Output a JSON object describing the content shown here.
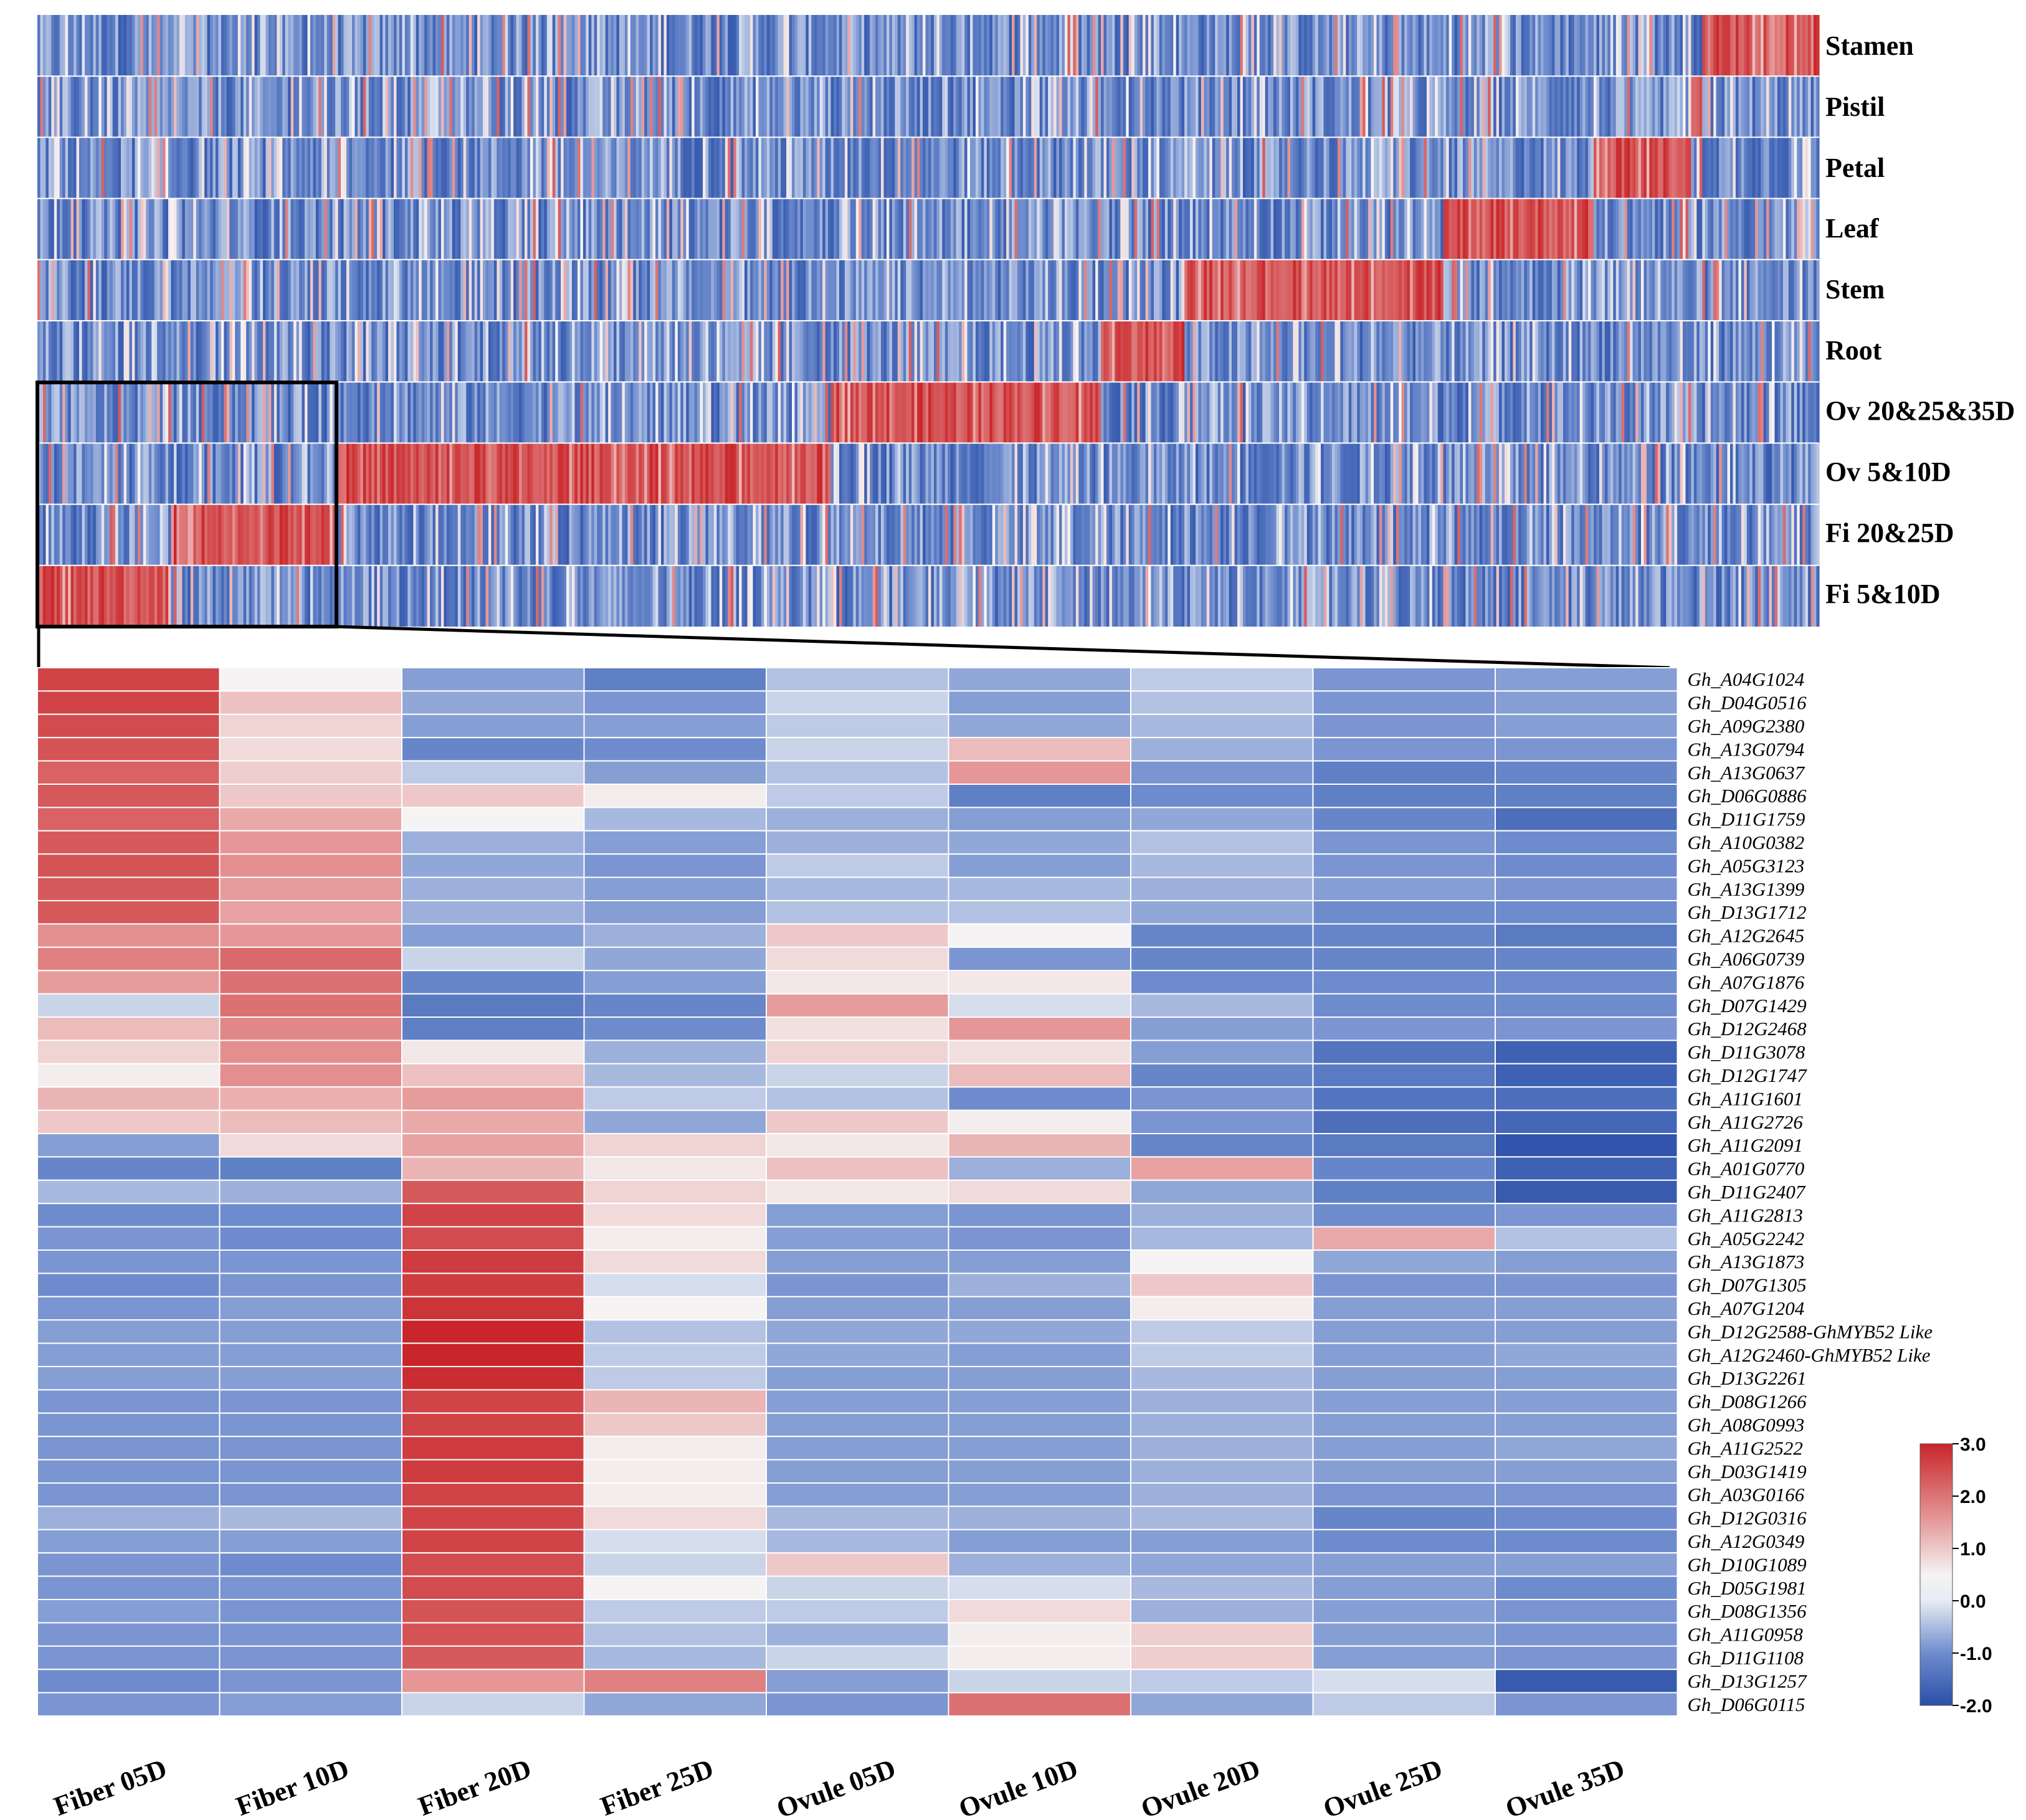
{
  "palette": {
    "low": "#2a4fa8",
    "mid": "#f5f3f3",
    "high": "#c8262a"
  },
  "chart_data": [
    {
      "type": "heatmap",
      "title": "",
      "rows": [
        "Stamen",
        "Pistil",
        "Petal",
        "Leaf",
        "Stem",
        "Root",
        "Ov 20&25&35D",
        "Ov 5&10D",
        "Fi 20&25D",
        "Fi 5&10D"
      ],
      "n_genes": 640,
      "high_blocks": [
        {
          "row": "Stamen",
          "gene_range": [
            598,
            640
          ]
        },
        {
          "row": "Pistil",
          "gene_range": [
            594,
            598
          ]
        },
        {
          "row": "Petal",
          "gene_range": [
            559,
            594
          ]
        },
        {
          "row": "Leaf",
          "gene_range": [
            505,
            559
          ]
        },
        {
          "row": "Stem",
          "gene_range": [
            412,
            505
          ]
        },
        {
          "row": "Root",
          "gene_range": [
            382,
            412
          ]
        },
        {
          "row": "Ov 20&25&35D",
          "gene_range": [
            285,
            382
          ]
        },
        {
          "row": "Ov 5&10D",
          "gene_range": [
            107,
            285
          ]
        },
        {
          "row": "Fi 20&25D",
          "gene_range": [
            48,
            107
          ]
        },
        {
          "row": "Fi 5&10D",
          "gene_range": [
            0,
            48
          ]
        }
      ],
      "zoom_gene_range": [
        0,
        107
      ],
      "zoom_row_range": [
        "Ov 20&25&35D",
        "Fi 5&10D"
      ]
    },
    {
      "type": "heatmap",
      "title": "",
      "columns": [
        "Fiber 05D",
        "Fiber 10D",
        "Fiber 20D",
        "Fiber 25D",
        "Ovule 05D",
        "Ovule 10D",
        "Ovule 20D",
        "Ovule 25D",
        "Ovule 35D"
      ],
      "genes": [
        {
          "id": "Gh_A04G1024",
          "values": [
            2.6,
            0.0,
            -0.8,
            -1.2,
            -0.4,
            -0.7,
            -0.3,
            -0.9,
            -0.8
          ]
        },
        {
          "id": "Gh_D04G0516",
          "values": [
            2.6,
            0.8,
            -0.7,
            -0.9,
            -0.2,
            -0.8,
            -0.4,
            -0.9,
            -0.8
          ]
        },
        {
          "id": "Gh_A09G2380",
          "values": [
            2.5,
            0.5,
            -0.8,
            -0.8,
            -0.3,
            -0.7,
            -0.5,
            -0.9,
            -0.8
          ]
        },
        {
          "id": "Gh_A13G0794",
          "values": [
            2.4,
            0.4,
            -1.1,
            -1.0,
            -0.2,
            0.9,
            -0.6,
            -0.9,
            -0.9
          ]
        },
        {
          "id": "Gh_A13G0637",
          "values": [
            2.2,
            0.6,
            -0.3,
            -0.8,
            -0.4,
            1.5,
            -0.9,
            -1.2,
            -1.1
          ]
        },
        {
          "id": "Gh_D06G0886",
          "values": [
            2.3,
            0.7,
            0.7,
            0.1,
            -0.3,
            -1.2,
            -1.0,
            -1.2,
            -1.2
          ]
        },
        {
          "id": "Gh_D11G1759",
          "values": [
            2.2,
            1.2,
            0.0,
            -0.5,
            -0.6,
            -0.8,
            -0.7,
            -1.1,
            -1.5
          ]
        },
        {
          "id": "Gh_A10G0382",
          "values": [
            2.3,
            1.5,
            -0.6,
            -0.8,
            -0.6,
            -0.7,
            -0.4,
            -0.9,
            -1.0
          ]
        },
        {
          "id": "Gh_A05G3123",
          "values": [
            2.4,
            1.6,
            -0.7,
            -0.9,
            -0.3,
            -0.8,
            -0.5,
            -0.9,
            -1.0
          ]
        },
        {
          "id": "Gh_A13G1399",
          "values": [
            2.3,
            1.4,
            -0.6,
            -0.8,
            -0.5,
            -0.5,
            -0.6,
            -0.8,
            -0.9
          ]
        },
        {
          "id": "Gh_D13G1712",
          "values": [
            2.3,
            1.3,
            -0.6,
            -0.8,
            -0.4,
            -0.4,
            -0.7,
            -1.0,
            -1.0
          ]
        },
        {
          "id": "Gh_A12G2645",
          "values": [
            1.6,
            1.5,
            -0.8,
            -0.6,
            0.7,
            0.0,
            -1.1,
            -1.1,
            -1.3
          ]
        },
        {
          "id": "Gh_A06G0739",
          "values": [
            1.8,
            2.1,
            -0.2,
            -0.7,
            0.4,
            -0.9,
            -1.1,
            -1.1,
            -1.1
          ]
        },
        {
          "id": "Gh_A07G1876",
          "values": [
            1.4,
            2.0,
            -1.1,
            -0.8,
            0.2,
            0.2,
            -1.0,
            -1.0,
            -1.0
          ]
        },
        {
          "id": "Gh_D07G1429",
          "values": [
            -0.2,
            2.0,
            -1.3,
            -1.1,
            1.4,
            -0.1,
            -0.5,
            -1.0,
            -1.0
          ]
        },
        {
          "id": "Gh_D12G2468",
          "values": [
            0.9,
            1.7,
            -1.2,
            -1.0,
            0.3,
            1.5,
            -0.8,
            -0.9,
            -0.9
          ]
        },
        {
          "id": "Gh_D11G3078",
          "values": [
            0.5,
            1.6,
            0.2,
            -0.6,
            0.5,
            0.3,
            -0.8,
            -1.4,
            -1.7
          ]
        },
        {
          "id": "Gh_D12G1747",
          "values": [
            0.1,
            1.6,
            0.8,
            -0.5,
            -0.2,
            0.9,
            -1.1,
            -1.3,
            -1.7
          ]
        },
        {
          "id": "Gh_A11G1601",
          "values": [
            1.0,
            1.1,
            1.4,
            -0.3,
            -0.4,
            -1.0,
            -0.9,
            -1.4,
            -1.5
          ]
        },
        {
          "id": "Gh_A11G2726",
          "values": [
            0.7,
            0.9,
            1.2,
            -0.7,
            0.7,
            0.1,
            -0.9,
            -1.5,
            -1.6
          ]
        },
        {
          "id": "Gh_A11G2091",
          "values": [
            -0.8,
            0.4,
            1.3,
            0.5,
            0.2,
            1.0,
            -1.1,
            -1.3,
            -1.9
          ]
        },
        {
          "id": "Gh_A01G0770",
          "values": [
            -1.1,
            -1.2,
            1.0,
            0.2,
            0.8,
            -0.6,
            1.3,
            -1.1,
            -1.7
          ]
        },
        {
          "id": "Gh_D11G2407",
          "values": [
            -0.5,
            -0.6,
            2.3,
            0.5,
            0.2,
            0.4,
            -0.7,
            -1.2,
            -1.8
          ]
        },
        {
          "id": "Gh_A11G2813",
          "values": [
            -1.0,
            -1.0,
            2.6,
            0.4,
            -0.8,
            -0.9,
            -0.6,
            -1.0,
            -0.9
          ]
        },
        {
          "id": "Gh_A05G2242",
          "values": [
            -0.9,
            -1.0,
            2.5,
            0.1,
            -0.8,
            -0.9,
            -0.5,
            1.2,
            -0.4
          ]
        },
        {
          "id": "Gh_A13G1873",
          "values": [
            -0.9,
            -0.9,
            2.7,
            0.4,
            -0.8,
            -0.8,
            0.0,
            -0.7,
            -0.8
          ]
        },
        {
          "id": "Gh_D07G1305",
          "values": [
            -1.0,
            -0.9,
            2.7,
            -0.1,
            -0.9,
            -0.6,
            0.7,
            -0.9,
            -0.9
          ]
        },
        {
          "id": "Gh_A07G1204",
          "values": [
            -0.9,
            -0.8,
            2.8,
            0.0,
            -0.8,
            -0.8,
            0.1,
            -0.8,
            -0.8
          ]
        },
        {
          "id": "Gh_D12G2588-GhMYB52 Like",
          "values": [
            -0.8,
            -0.8,
            3.0,
            -0.4,
            -0.7,
            -0.7,
            -0.3,
            -0.8,
            -0.8
          ]
        },
        {
          "id": "Gh_A12G2460-GhMYB52 Like",
          "values": [
            -0.8,
            -0.8,
            3.0,
            -0.3,
            -0.7,
            -0.8,
            -0.3,
            -0.8,
            -0.7
          ]
        },
        {
          "id": "Gh_D13G2261",
          "values": [
            -0.8,
            -0.8,
            2.9,
            -0.3,
            -0.8,
            -0.8,
            -0.5,
            -0.8,
            -0.8
          ]
        },
        {
          "id": "Gh_D08G1266",
          "values": [
            -0.9,
            -0.9,
            2.6,
            1.0,
            -0.8,
            -0.8,
            -0.6,
            -0.8,
            -0.8
          ]
        },
        {
          "id": "Gh_A08G0993",
          "values": [
            -0.9,
            -0.9,
            2.6,
            0.7,
            -0.8,
            -0.8,
            -0.6,
            -0.8,
            -0.8
          ]
        },
        {
          "id": "Gh_A11G2522",
          "values": [
            -0.9,
            -0.9,
            2.7,
            0.1,
            -0.8,
            -0.8,
            -0.6,
            -0.8,
            -0.7
          ]
        },
        {
          "id": "Gh_D03G1419",
          "values": [
            -0.9,
            -0.9,
            2.7,
            0.1,
            -0.8,
            -0.8,
            -0.6,
            -0.8,
            -0.8
          ]
        },
        {
          "id": "Gh_A03G0166",
          "values": [
            -0.9,
            -0.9,
            2.6,
            0.1,
            -0.8,
            -0.8,
            -0.6,
            -0.9,
            -0.9
          ]
        },
        {
          "id": "Gh_D12G0316",
          "values": [
            -0.6,
            -0.5,
            2.6,
            0.4,
            -0.5,
            -0.6,
            -0.5,
            -1.1,
            -1.0
          ]
        },
        {
          "id": "Gh_A12G0349",
          "values": [
            -0.8,
            -0.8,
            2.6,
            -0.1,
            -0.5,
            -0.8,
            -0.8,
            -1.0,
            -1.0
          ]
        },
        {
          "id": "Gh_D10G1089",
          "values": [
            -0.9,
            -1.0,
            2.5,
            -0.2,
            0.7,
            -0.6,
            -0.7,
            -0.8,
            -0.8
          ]
        },
        {
          "id": "Gh_D05G1981",
          "values": [
            -0.9,
            -0.9,
            2.5,
            0.0,
            -0.2,
            -0.1,
            -0.5,
            -0.8,
            -1.0
          ]
        },
        {
          "id": "Gh_D08G1356",
          "values": [
            -0.8,
            -0.9,
            2.4,
            -0.3,
            -0.3,
            0.4,
            -0.6,
            -0.8,
            -0.9
          ]
        },
        {
          "id": "Gh_A11G0958",
          "values": [
            -0.9,
            -0.9,
            2.4,
            -0.4,
            -0.6,
            0.1,
            0.6,
            -0.8,
            -0.9
          ]
        },
        {
          "id": "Gh_D11G1108",
          "values": [
            -0.9,
            -0.9,
            2.3,
            -0.5,
            -0.2,
            0.1,
            0.6,
            -0.8,
            -0.9
          ]
        },
        {
          "id": "Gh_D13G1257",
          "values": [
            -1.0,
            -0.9,
            1.5,
            1.8,
            -0.8,
            -0.2,
            -0.3,
            -0.1,
            -1.8
          ]
        },
        {
          "id": "Gh_D06G0115",
          "values": [
            -0.9,
            -0.8,
            -0.2,
            -0.7,
            -0.9,
            2.0,
            -0.7,
            -0.3,
            -0.9
          ]
        }
      ],
      "color_scale": {
        "min": -2.0,
        "max": 3.0,
        "ticks": [
          "3.0",
          "2.0",
          "1.0",
          "0.0",
          "-1.0",
          "-2.0"
        ]
      }
    }
  ]
}
